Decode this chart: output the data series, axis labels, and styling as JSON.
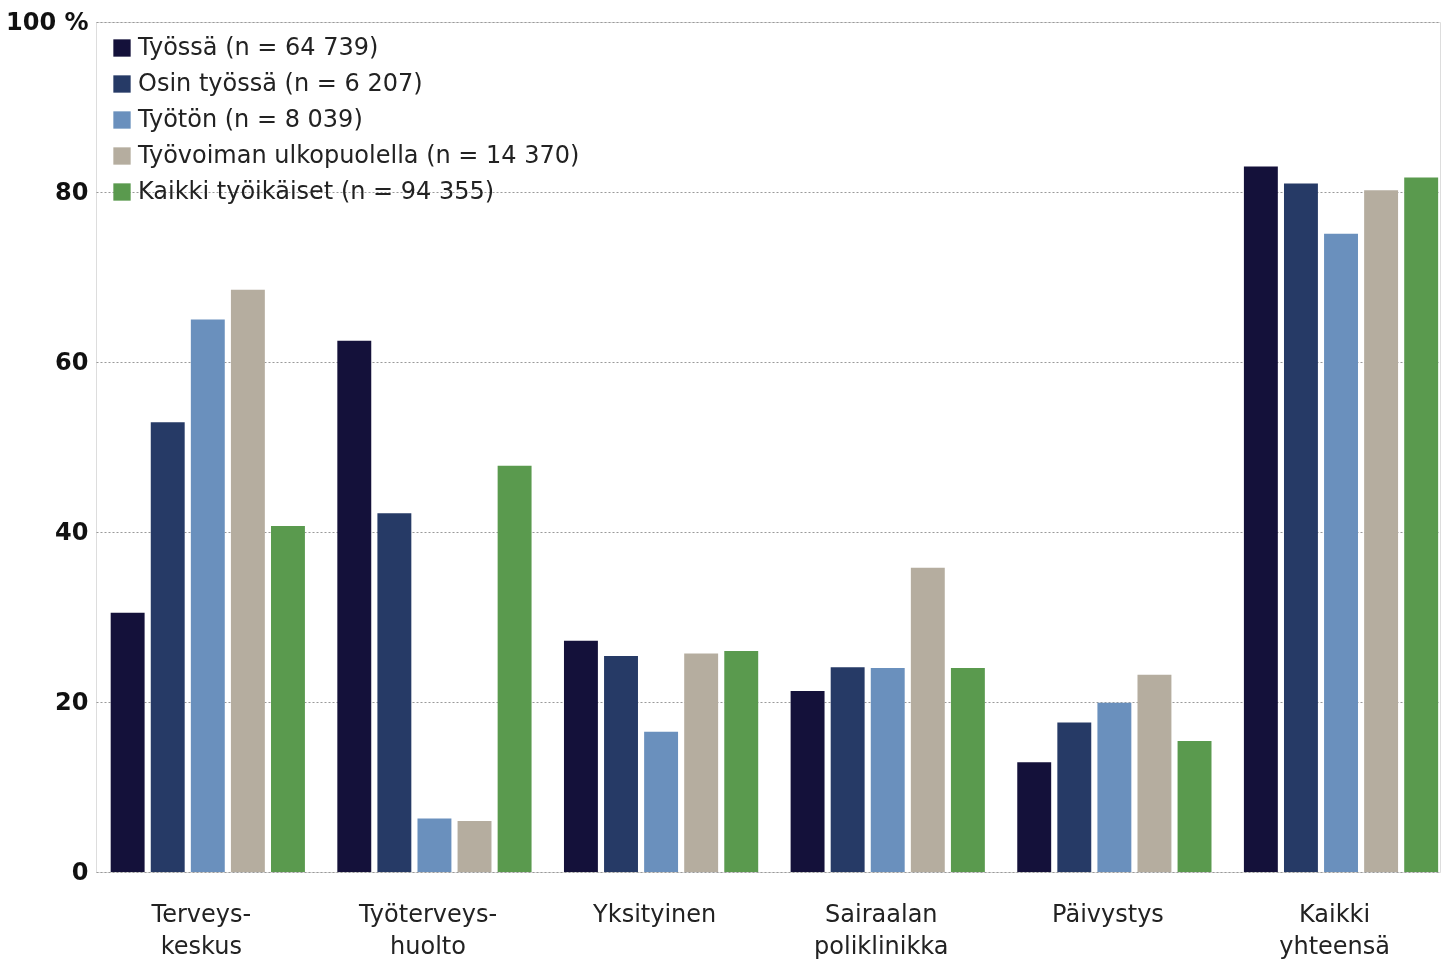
{
  "chart_data": {
    "type": "bar",
    "categories": [
      "Terveys-\nkeskus",
      "Työterveys-\nhuolto",
      "Yksityinen",
      "Sairaalan\npoliklinikka",
      "Päivystys",
      "Kaikki\nyhteensä"
    ],
    "series": [
      {
        "name": "Työssä (n = 64 739)",
        "color": "#14113a",
        "values": [
          30.5,
          62.5,
          27.2,
          21.3,
          12.9,
          83.0
        ]
      },
      {
        "name": "Osin työssä (n = 6 207)",
        "color": "#263a66",
        "values": [
          52.9,
          42.2,
          25.4,
          24.1,
          17.6,
          81.0
        ]
      },
      {
        "name": "Työtön (n = 8 039)",
        "color": "#6a90bd",
        "values": [
          65.0,
          6.3,
          16.5,
          24.0,
          19.9,
          75.1
        ]
      },
      {
        "name": "Työvoiman ulkopuolella (n = 14 370)",
        "color": "#b5ad9f",
        "values": [
          68.5,
          6.0,
          25.7,
          35.8,
          23.2,
          80.2
        ]
      },
      {
        "name": "Kaikki työikäiset (n = 94 355)",
        "color": "#5a9a4e",
        "values": [
          40.7,
          47.8,
          26.0,
          24.0,
          15.4,
          81.7
        ]
      }
    ],
    "ylim": [
      0,
      100
    ],
    "yticks": [
      0,
      20,
      40,
      60,
      80,
      {
        "value": 100,
        "label": "100 %"
      }
    ],
    "grid": "y",
    "legend": "top left"
  }
}
